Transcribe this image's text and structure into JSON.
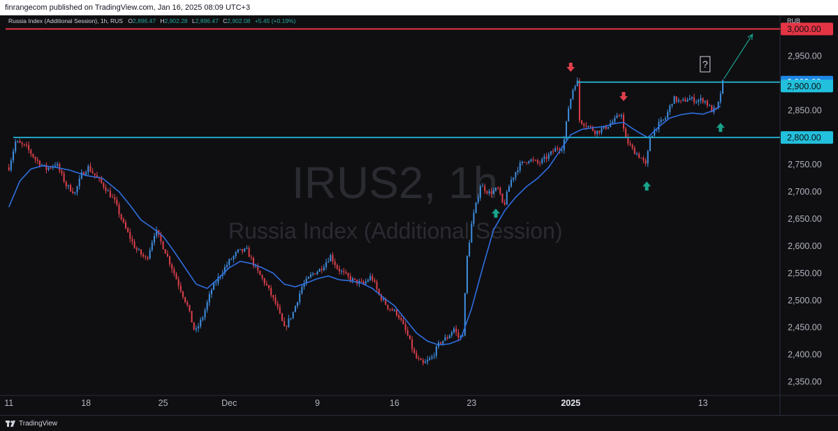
{
  "header": {
    "published_by": "finrangecom published on TradingView.com, Jan 16, 2025 08:09 UTC+3"
  },
  "legend": {
    "symbol": "Russia Index (Additional Session), 1h, RUS",
    "o_label": "O",
    "o_value": "2,896.47",
    "h_label": "H",
    "h_value": "2,902.28",
    "l_label": "L",
    "l_value": "2,896.47",
    "c_label": "C",
    "c_value": "2,902.08",
    "change": "+5.45 (+0.19%)"
  },
  "currency": "RUB",
  "watermark": {
    "line1": "IRUS2, 1h",
    "line2": "Russia Index (Additional Session)"
  },
  "footer": {
    "brand": "TradingView",
    "logo_icon": "tradingview-logo-icon"
  },
  "colors": {
    "background": "#0f0f12",
    "up": "#3f8fe0",
    "down": "#e0404b",
    "ma": "#2f6fe0",
    "level_cyan": "#22a8c4",
    "level_red": "#e53545",
    "arrow_green": "#19a38a",
    "arrow_red": "#e0404b",
    "price_label_blue": "#1e88e5",
    "price_label_cyan": "#22c0dc"
  },
  "chart_data": {
    "type": "candlestick",
    "title": "Russia Index (Additional Session), 1h, RUS",
    "ylim": [
      2325,
      3025
    ],
    "y_ticks": [
      2350,
      2400,
      2450,
      2500,
      2550,
      2600,
      2650,
      2700,
      2750,
      2800,
      2850,
      2900,
      2950,
      3000
    ],
    "y_tick_labels": [
      "2,350.00",
      "2,400.00",
      "2,450.00",
      "2,500.00",
      "2,550.00",
      "2,600.00",
      "2,650.00",
      "2,700.00",
      "2,750.00",
      "2,800.00",
      "2,850.00",
      "2,900.00",
      "2,950.00",
      "3,000.00"
    ],
    "x_ticks": [
      {
        "label": "11",
        "day": 0
      },
      {
        "label": "18",
        "day": 7
      },
      {
        "label": "25",
        "day": 14
      },
      {
        "label": "Dec",
        "day": 20
      },
      {
        "label": "9",
        "day": 28
      },
      {
        "label": "16",
        "day": 35
      },
      {
        "label": "23",
        "day": 42
      },
      {
        "label": "2025",
        "day": 51,
        "bold": true
      },
      {
        "label": "13",
        "day": 63
      }
    ],
    "x_domain_days": [
      -0.3,
      70
    ],
    "price_path": [
      [
        0.0,
        2745
      ],
      [
        0.6,
        2792
      ],
      [
        1.6,
        2782
      ],
      [
        2.4,
        2760
      ],
      [
        3.4,
        2742
      ],
      [
        4.3,
        2752
      ],
      [
        5.2,
        2712
      ],
      [
        6.0,
        2698
      ],
      [
        6.6,
        2732
      ],
      [
        7.2,
        2745
      ],
      [
        7.9,
        2728
      ],
      [
        8.8,
        2706
      ],
      [
        9.6,
        2682
      ],
      [
        10.4,
        2640
      ],
      [
        11.5,
        2595
      ],
      [
        12.5,
        2575
      ],
      [
        13.3,
        2630
      ],
      [
        14.2,
        2590
      ],
      [
        15.2,
        2540
      ],
      [
        16.2,
        2490
      ],
      [
        16.9,
        2440
      ],
      [
        17.6,
        2470
      ],
      [
        18.4,
        2520
      ],
      [
        19.2,
        2548
      ],
      [
        20.0,
        2572
      ],
      [
        20.8,
        2590
      ],
      [
        21.6,
        2592
      ],
      [
        22.5,
        2555
      ],
      [
        23.4,
        2527
      ],
      [
        24.3,
        2490
      ],
      [
        25.0,
        2448
      ],
      [
        25.8,
        2478
      ],
      [
        26.6,
        2525
      ],
      [
        27.5,
        2548
      ],
      [
        28.3,
        2558
      ],
      [
        29.2,
        2582
      ],
      [
        29.8,
        2560
      ],
      [
        30.6,
        2545
      ],
      [
        31.4,
        2535
      ],
      [
        32.2,
        2530
      ],
      [
        32.9,
        2545
      ],
      [
        33.6,
        2510
      ],
      [
        34.4,
        2488
      ],
      [
        35.3,
        2475
      ],
      [
        36.2,
        2435
      ],
      [
        36.9,
        2395
      ],
      [
        37.6,
        2382
      ],
      [
        38.4,
        2395
      ],
      [
        39.1,
        2422
      ],
      [
        39.8,
        2432
      ],
      [
        40.4,
        2448
      ],
      [
        40.9,
        2428
      ],
      [
        41.2,
        2440
      ],
      [
        41.6,
        2580
      ],
      [
        42.0,
        2640
      ],
      [
        42.8,
        2712
      ],
      [
        43.6,
        2698
      ],
      [
        44.4,
        2705
      ],
      [
        44.9,
        2672
      ],
      [
        45.5,
        2718
      ],
      [
        46.3,
        2748
      ],
      [
        47.2,
        2760
      ],
      [
        48.1,
        2752
      ],
      [
        48.9,
        2765
      ],
      [
        49.7,
        2780
      ],
      [
        50.3,
        2782
      ],
      [
        50.8,
        2855
      ],
      [
        51.3,
        2898
      ],
      [
        51.6,
        2902
      ],
      [
        51.8,
        2832
      ],
      [
        52.5,
        2822
      ],
      [
        53.3,
        2810
      ],
      [
        54.1,
        2818
      ],
      [
        55.0,
        2832
      ],
      [
        55.6,
        2845
      ],
      [
        55.9,
        2800
      ],
      [
        56.6,
        2778
      ],
      [
        57.4,
        2762
      ],
      [
        57.9,
        2745
      ],
      [
        58.1,
        2798
      ],
      [
        58.8,
        2820
      ],
      [
        59.6,
        2836
      ],
      [
        60.3,
        2872
      ],
      [
        61.0,
        2865
      ],
      [
        61.7,
        2872
      ],
      [
        62.4,
        2868
      ],
      [
        63.1,
        2870
      ],
      [
        63.8,
        2850
      ],
      [
        64.3,
        2852
      ],
      [
        64.8,
        2902
      ]
    ],
    "moving_average": [
      [
        0.0,
        2672
      ],
      [
        1.0,
        2720
      ],
      [
        2.0,
        2742
      ],
      [
        3.0,
        2748
      ],
      [
        4.0,
        2746
      ],
      [
        5.5,
        2740
      ],
      [
        7.0,
        2730
      ],
      [
        8.5,
        2725
      ],
      [
        10.0,
        2700
      ],
      [
        11.0,
        2675
      ],
      [
        12.0,
        2648
      ],
      [
        13.0,
        2634
      ],
      [
        14.0,
        2618
      ],
      [
        15.0,
        2590
      ],
      [
        16.0,
        2560
      ],
      [
        17.0,
        2530
      ],
      [
        18.0,
        2522
      ],
      [
        19.0,
        2540
      ],
      [
        20.0,
        2560
      ],
      [
        21.0,
        2572
      ],
      [
        22.0,
        2568
      ],
      [
        23.0,
        2560
      ],
      [
        24.0,
        2550
      ],
      [
        25.0,
        2530
      ],
      [
        26.0,
        2525
      ],
      [
        27.0,
        2532
      ],
      [
        28.0,
        2540
      ],
      [
        29.0,
        2545
      ],
      [
        30.0,
        2538
      ],
      [
        31.0,
        2536
      ],
      [
        32.0,
        2532
      ],
      [
        33.0,
        2522
      ],
      [
        34.0,
        2505
      ],
      [
        35.0,
        2490
      ],
      [
        36.0,
        2465
      ],
      [
        37.0,
        2440
      ],
      [
        38.0,
        2425
      ],
      [
        39.0,
        2418
      ],
      [
        40.0,
        2420
      ],
      [
        41.0,
        2428
      ],
      [
        42.0,
        2485
      ],
      [
        43.0,
        2560
      ],
      [
        44.0,
        2630
      ],
      [
        45.0,
        2665
      ],
      [
        46.0,
        2690
      ],
      [
        47.0,
        2710
      ],
      [
        48.0,
        2725
      ],
      [
        49.0,
        2745
      ],
      [
        50.0,
        2775
      ],
      [
        51.0,
        2805
      ],
      [
        52.0,
        2815
      ],
      [
        53.0,
        2818
      ],
      [
        54.0,
        2820
      ],
      [
        55.0,
        2826
      ],
      [
        55.8,
        2828
      ],
      [
        56.5,
        2818
      ],
      [
        57.3,
        2808
      ],
      [
        58.0,
        2800
      ],
      [
        59.0,
        2820
      ],
      [
        60.0,
        2836
      ],
      [
        61.0,
        2842
      ],
      [
        62.0,
        2845
      ],
      [
        63.0,
        2843
      ],
      [
        64.0,
        2850
      ],
      [
        64.6,
        2858
      ]
    ],
    "horizontal_levels": [
      {
        "price": 3000,
        "color": "red",
        "label": "3,000.00",
        "from_day": -0.3
      },
      {
        "price": 2902.08,
        "color": "cyan",
        "label": "2,902.08",
        "from_day": 51.6
      },
      {
        "price": 2800,
        "color": "cyan",
        "label": "2,800.00",
        "from_day": 0.4
      }
    ],
    "extra_axis_labels": [
      {
        "price": 2900,
        "label": "2,900.00",
        "style": "cyan"
      }
    ],
    "markers": [
      {
        "type": "arrow-up",
        "color": "green",
        "day": 44.2,
        "price": 2660
      },
      {
        "type": "arrow-down",
        "color": "red",
        "day": 51.0,
        "price": 2930
      },
      {
        "type": "arrow-down",
        "color": "red",
        "day": 55.8,
        "price": 2876
      },
      {
        "type": "arrow-up",
        "color": "green",
        "day": 57.9,
        "price": 2710
      },
      {
        "type": "arrow-up",
        "color": "green",
        "day": 64.6,
        "price": 2818
      }
    ],
    "projection": {
      "from_day": 64.9,
      "from_price": 2908,
      "to_day": 67.5,
      "to_price": 2990
    },
    "question_box": {
      "text": "?",
      "day": 63.2,
      "price": 2935
    },
    "candle_step_days": 0.2,
    "noise_seed": 7
  }
}
